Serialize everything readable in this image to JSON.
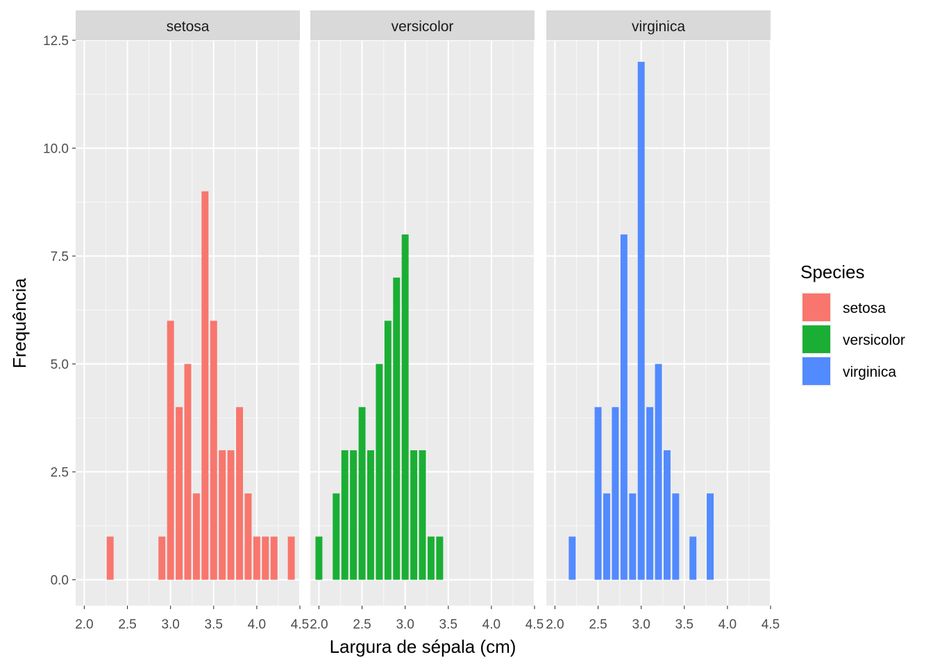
{
  "chart_data": {
    "type": "bar",
    "subtype": "faceted-histogram",
    "facet_by": "Species",
    "xlabel": "Largura de sépala (cm)",
    "ylabel": "Frequência",
    "xlim": [
      1.9,
      4.5
    ],
    "ylim": [
      -0.6,
      12.5
    ],
    "x_ticks": [
      "2.0",
      "2.5",
      "3.0",
      "3.5",
      "4.0",
      "4.5"
    ],
    "y_ticks": [
      "0.0",
      "2.5",
      "5.0",
      "7.5",
      "10.0",
      "12.5"
    ],
    "bin_width": 0.08,
    "grid": true,
    "legend": {
      "title": "Species",
      "position": "right",
      "entries": [
        "setosa",
        "versicolor",
        "virginica"
      ]
    },
    "series": [
      {
        "name": "setosa",
        "color": "#F8766D",
        "bins": [
          {
            "x": 2.3,
            "count": 1
          },
          {
            "x": 2.9,
            "count": 1
          },
          {
            "x": 3.0,
            "count": 6
          },
          {
            "x": 3.1,
            "count": 4
          },
          {
            "x": 3.2,
            "count": 5
          },
          {
            "x": 3.3,
            "count": 2
          },
          {
            "x": 3.4,
            "count": 9
          },
          {
            "x": 3.5,
            "count": 6
          },
          {
            "x": 3.6,
            "count": 3
          },
          {
            "x": 3.7,
            "count": 3
          },
          {
            "x": 3.8,
            "count": 4
          },
          {
            "x": 3.9,
            "count": 2
          },
          {
            "x": 4.0,
            "count": 1
          },
          {
            "x": 4.1,
            "count": 1
          },
          {
            "x": 4.2,
            "count": 1
          },
          {
            "x": 4.4,
            "count": 1
          }
        ]
      },
      {
        "name": "versicolor",
        "color": "#1AAF34",
        "bins": [
          {
            "x": 2.0,
            "count": 1
          },
          {
            "x": 2.2,
            "count": 2
          },
          {
            "x": 2.3,
            "count": 3
          },
          {
            "x": 2.4,
            "count": 3
          },
          {
            "x": 2.5,
            "count": 4
          },
          {
            "x": 2.6,
            "count": 3
          },
          {
            "x": 2.7,
            "count": 5
          },
          {
            "x": 2.8,
            "count": 6
          },
          {
            "x": 2.9,
            "count": 7
          },
          {
            "x": 3.0,
            "count": 8
          },
          {
            "x": 3.1,
            "count": 3
          },
          {
            "x": 3.2,
            "count": 3
          },
          {
            "x": 3.3,
            "count": 1
          },
          {
            "x": 3.4,
            "count": 1
          }
        ]
      },
      {
        "name": "virginica",
        "color": "#528AFF",
        "bins": [
          {
            "x": 2.2,
            "count": 1
          },
          {
            "x": 2.5,
            "count": 4
          },
          {
            "x": 2.6,
            "count": 2
          },
          {
            "x": 2.7,
            "count": 4
          },
          {
            "x": 2.8,
            "count": 8
          },
          {
            "x": 2.9,
            "count": 2
          },
          {
            "x": 3.0,
            "count": 12
          },
          {
            "x": 3.1,
            "count": 4
          },
          {
            "x": 3.2,
            "count": 5
          },
          {
            "x": 3.3,
            "count": 3
          },
          {
            "x": 3.4,
            "count": 2
          },
          {
            "x": 3.6,
            "count": 1
          },
          {
            "x": 3.8,
            "count": 2
          }
        ]
      }
    ]
  }
}
